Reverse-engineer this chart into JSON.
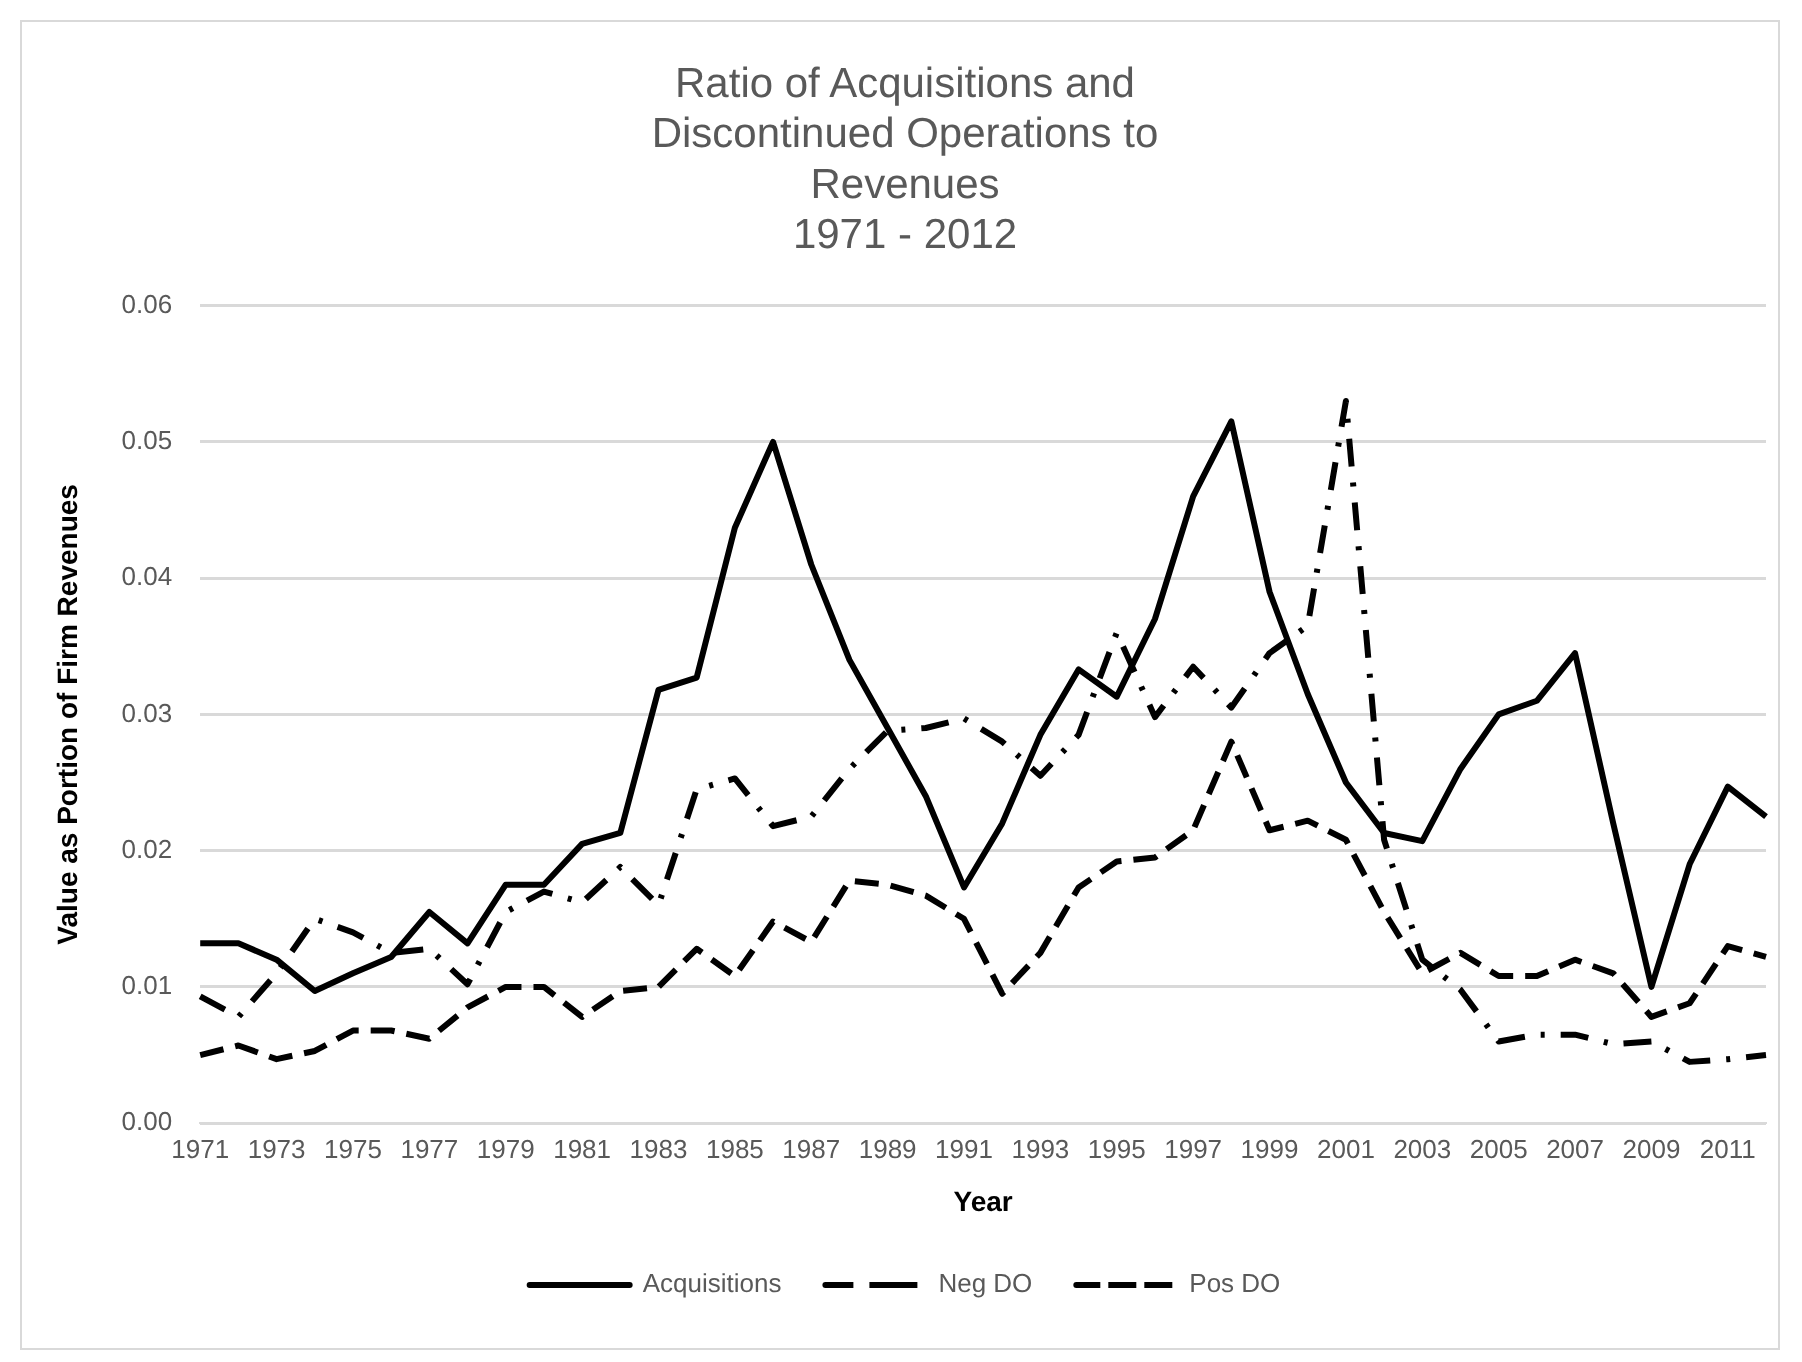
{
  "chart_data": {
    "type": "line",
    "title": "Ratio of Acquisitions and\nDiscontinued Operations to\nRevenues\n1971 - 2012",
    "xlabel": "Year",
    "ylabel": "Value as Portion of Firm Revenues",
    "categories": [
      "1971",
      null,
      "1973",
      null,
      "1975",
      null,
      "1977",
      null,
      "1979",
      null,
      "1981",
      null,
      "1983",
      null,
      "1985",
      null,
      "1987",
      null,
      "1989",
      null,
      "1991",
      null,
      "1993",
      null,
      "1995",
      null,
      "1997",
      null,
      "1999",
      null,
      "2001",
      null,
      "2003",
      null,
      "2005",
      null,
      "2007",
      null,
      "2009",
      null,
      "2011",
      null
    ],
    "series": [
      {
        "name": "Acquisitions",
        "color": "#000000",
        "line_style": "solid",
        "values": [
          0.0132,
          0.0132,
          0.012,
          0.0097,
          0.011,
          0.0122,
          0.0155,
          0.0132,
          0.0175,
          0.0175,
          0.0205,
          0.0213,
          0.0318,
          0.0327,
          0.0437,
          0.05,
          0.041,
          0.034,
          0.029,
          0.024,
          0.0173,
          0.022,
          0.0285,
          0.0333,
          0.0313,
          0.037,
          0.046,
          0.0515,
          0.039,
          0.0315,
          0.025,
          0.0213,
          0.0207,
          0.026,
          0.03,
          0.031,
          0.0345,
          0.022,
          0.01,
          0.019,
          0.0247,
          0.0225
        ]
      },
      {
        "name": "Neg DO",
        "color": "#000000",
        "line_style": "dashdot",
        "values": [
          0.0093,
          0.0078,
          0.011,
          0.015,
          0.014,
          0.0125,
          0.0128,
          0.0102,
          0.0155,
          0.017,
          0.0162,
          0.0188,
          0.016,
          0.0245,
          0.0253,
          0.0218,
          0.0225,
          0.026,
          0.0288,
          0.029,
          0.0297,
          0.028,
          0.0255,
          0.0285,
          0.036,
          0.0298,
          0.0335,
          0.0305,
          0.0345,
          0.0365,
          0.053,
          0.0208,
          0.012,
          0.0098,
          0.006,
          0.0065,
          0.0065,
          0.0058,
          0.006,
          0.0045,
          0.0047,
          0.005
        ]
      },
      {
        "name": "Pos DO",
        "color": "#000000",
        "line_style": "dashed",
        "values": [
          0.005,
          0.0057,
          0.0047,
          0.0053,
          0.0068,
          0.0068,
          0.0062,
          0.0085,
          0.01,
          0.01,
          0.0078,
          0.0097,
          0.01,
          0.0128,
          0.0108,
          0.0148,
          0.0133,
          0.0178,
          0.0175,
          0.0167,
          0.015,
          0.0095,
          0.0125,
          0.0173,
          0.0192,
          0.0195,
          0.0215,
          0.028,
          0.0215,
          0.0222,
          0.0208,
          0.0155,
          0.011,
          0.0125,
          0.0108,
          0.0108,
          0.012,
          0.011,
          0.0078,
          0.0088,
          0.013,
          0.0122
        ]
      }
    ],
    "ylim": [
      0,
      0.06
    ],
    "yticks": [
      {
        "value": 0,
        "label": "0.00"
      },
      {
        "value": 0.01,
        "label": "0.01"
      },
      {
        "value": 0.02,
        "label": "0.02"
      },
      {
        "value": 0.03,
        "label": "0.03"
      },
      {
        "value": 0.04,
        "label": "0.04"
      },
      {
        "value": 0.05,
        "label": "0.05"
      },
      {
        "value": 0.06,
        "label": "0.06"
      }
    ],
    "grid": "y",
    "legend": "bottom",
    "marker": "none"
  }
}
